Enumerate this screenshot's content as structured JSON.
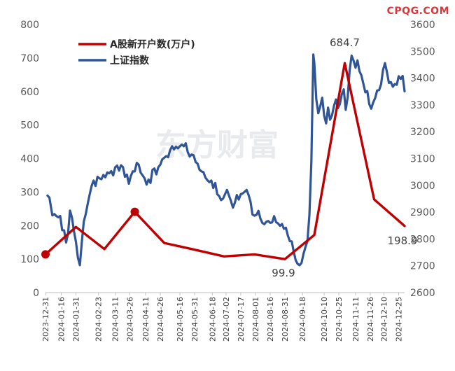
{
  "brand_text": "CPQG.COM",
  "watermark_text": "东方财富",
  "colors": {
    "accounts": "#c00000",
    "index": "#2f5597",
    "axis_text": "#595959",
    "brand": "#d9383a"
  },
  "chart_data": {
    "type": "line",
    "title": "",
    "xlabel": "",
    "ylabel": "",
    "ylim_left": [
      0,
      800
    ],
    "yticks_left": [
      0,
      100,
      200,
      300,
      400,
      500,
      600,
      700,
      800
    ],
    "ylim_right": [
      2600,
      3600
    ],
    "yticks_right": [
      2600,
      2700,
      2800,
      2900,
      3000,
      3100,
      3200,
      3300,
      3400,
      3500,
      3600
    ],
    "x_range": [
      "2023-12-31",
      "2024-12-31"
    ],
    "x_ticks": [
      "2023-12-31",
      "2024-01-16",
      "2024-01-31",
      "2024-02-23",
      "2024-03-11",
      "2024-03-26",
      "2024-04-11",
      "2024-04-26",
      "2024-05-16",
      "2024-05-31",
      "2024-06-18",
      "2024-07-02",
      "2024-07-17",
      "2024-08-01",
      "2024-08-16",
      "2024-08-31",
      "2024-09-18",
      "2024-10-10",
      "2024-10-25",
      "2024-11-11",
      "2024-11-26",
      "2024-12-10",
      "2024-12-25"
    ],
    "grid": false,
    "legend_position": "top-left",
    "series": [
      {
        "name": "A股新开户数(万户)",
        "axis": "left",
        "color": "#c00000",
        "marker_dates": [
          "2023-12-31",
          "2024-03-31"
        ],
        "points": [
          [
            "2023-12-31",
            114
          ],
          [
            "2024-01-31",
            196
          ],
          [
            "2024-02-29",
            130
          ],
          [
            "2024-03-31",
            241
          ],
          [
            "2024-04-30",
            148
          ],
          [
            "2024-05-31",
            128
          ],
          [
            "2024-06-30",
            108
          ],
          [
            "2024-07-31",
            114
          ],
          [
            "2024-08-31",
            99.9
          ],
          [
            "2024-09-30",
            172
          ],
          [
            "2024-10-31",
            684.7
          ],
          [
            "2024-11-30",
            278
          ],
          [
            "2024-12-31",
            198.9
          ]
        ]
      },
      {
        "name": "上证指数",
        "axis": "right",
        "color": "#2f5597",
        "points": [
          [
            "2024-01-02",
            2962
          ],
          [
            "2024-01-04",
            2954
          ],
          [
            "2024-01-07",
            2888
          ],
          [
            "2024-01-09",
            2893
          ],
          [
            "2024-01-11",
            2886
          ],
          [
            "2024-01-13",
            2881
          ],
          [
            "2024-01-15",
            2886
          ],
          [
            "2024-01-17",
            2833
          ],
          [
            "2024-01-19",
            2832
          ],
          [
            "2024-01-21",
            2787
          ],
          [
            "2024-01-23",
            2820
          ],
          [
            "2024-01-25",
            2906
          ],
          [
            "2024-01-27",
            2880
          ],
          [
            "2024-01-29",
            2830
          ],
          [
            "2024-01-31",
            2789
          ],
          [
            "2024-02-02",
            2730
          ],
          [
            "2024-02-04",
            2702
          ],
          [
            "2024-02-06",
            2789
          ],
          [
            "2024-02-08",
            2865
          ],
          [
            "2024-02-10",
            2893
          ],
          [
            "2024-02-12",
            2931
          ],
          [
            "2024-02-14",
            2966
          ],
          [
            "2024-02-16",
            2998
          ],
          [
            "2024-02-18",
            3018
          ],
          [
            "2024-02-20",
            2998
          ],
          [
            "2024-02-22",
            3032
          ],
          [
            "2024-02-24",
            3026
          ],
          [
            "2024-02-26",
            3023
          ],
          [
            "2024-02-28",
            3039
          ],
          [
            "2024-03-01",
            3030
          ],
          [
            "2024-03-03",
            3048
          ],
          [
            "2024-03-05",
            3045
          ],
          [
            "2024-03-07",
            3053
          ],
          [
            "2024-03-09",
            3037
          ],
          [
            "2024-03-11",
            3067
          ],
          [
            "2024-03-13",
            3074
          ],
          [
            "2024-03-15",
            3055
          ],
          [
            "2024-03-17",
            3075
          ],
          [
            "2024-03-19",
            3068
          ],
          [
            "2024-03-21",
            3032
          ],
          [
            "2024-03-23",
            3040
          ],
          [
            "2024-03-25",
            3006
          ],
          [
            "2024-03-27",
            3035
          ],
          [
            "2024-03-29",
            3052
          ],
          [
            "2024-03-31",
            3052
          ],
          [
            "2024-04-02",
            3084
          ],
          [
            "2024-04-04",
            3077
          ],
          [
            "2024-04-06",
            3047
          ],
          [
            "2024-04-08",
            3037
          ],
          [
            "2024-04-10",
            3026
          ],
          [
            "2024-04-12",
            3003
          ],
          [
            "2024-04-14",
            3022
          ],
          [
            "2024-04-16",
            3009
          ],
          [
            "2024-04-18",
            3058
          ],
          [
            "2024-04-20",
            3063
          ],
          [
            "2024-04-22",
            3041
          ],
          [
            "2024-04-24",
            3068
          ],
          [
            "2024-04-26",
            3077
          ],
          [
            "2024-04-28",
            3097
          ],
          [
            "2024-04-30",
            3103
          ],
          [
            "2024-05-02",
            3109
          ],
          [
            "2024-05-04",
            3105
          ],
          [
            "2024-05-06",
            3131
          ],
          [
            "2024-05-08",
            3146
          ],
          [
            "2024-05-10",
            3134
          ],
          [
            "2024-05-12",
            3144
          ],
          [
            "2024-05-14",
            3138
          ],
          [
            "2024-05-16",
            3146
          ],
          [
            "2024-05-18",
            3152
          ],
          [
            "2024-05-20",
            3146
          ],
          [
            "2024-05-22",
            3157
          ],
          [
            "2024-05-24",
            3124
          ],
          [
            "2024-05-26",
            3108
          ],
          [
            "2024-05-28",
            3115
          ],
          [
            "2024-05-30",
            3112
          ],
          [
            "2024-06-01",
            3087
          ],
          [
            "2024-06-03",
            3081
          ],
          [
            "2024-06-05",
            3058
          ],
          [
            "2024-06-07",
            3052
          ],
          [
            "2024-06-09",
            3049
          ],
          [
            "2024-06-11",
            3029
          ],
          [
            "2024-06-13",
            3019
          ],
          [
            "2024-06-15",
            3012
          ],
          [
            "2024-06-17",
            3018
          ],
          [
            "2024-06-19",
            2990
          ],
          [
            "2024-06-21",
            3009
          ],
          [
            "2024-06-23",
            2967
          ],
          [
            "2024-06-25",
            2960
          ],
          [
            "2024-06-27",
            2945
          ],
          [
            "2024-06-29",
            2951
          ],
          [
            "2024-07-01",
            2967
          ],
          [
            "2024-07-03",
            2983
          ],
          [
            "2024-07-05",
            2962
          ],
          [
            "2024-07-07",
            2942
          ],
          [
            "2024-07-09",
            2917
          ],
          [
            "2024-07-11",
            2935
          ],
          [
            "2024-07-13",
            2964
          ],
          [
            "2024-07-15",
            2947
          ],
          [
            "2024-07-17",
            2967
          ],
          [
            "2024-07-19",
            2970
          ],
          [
            "2024-07-21",
            2976
          ],
          [
            "2024-07-23",
            2983
          ],
          [
            "2024-07-25",
            2964
          ],
          [
            "2024-07-27",
            2939
          ],
          [
            "2024-07-29",
            2891
          ],
          [
            "2024-07-31",
            2887
          ],
          [
            "2024-08-02",
            2890
          ],
          [
            "2024-08-04",
            2905
          ],
          [
            "2024-08-06",
            2876
          ],
          [
            "2024-08-08",
            2860
          ],
          [
            "2024-08-10",
            2855
          ],
          [
            "2024-08-12",
            2864
          ],
          [
            "2024-08-14",
            2867
          ],
          [
            "2024-08-16",
            2860
          ],
          [
            "2024-08-18",
            2862
          ],
          [
            "2024-08-20",
            2885
          ],
          [
            "2024-08-22",
            2863
          ],
          [
            "2024-08-24",
            2858
          ],
          [
            "2024-08-26",
            2849
          ],
          [
            "2024-08-28",
            2856
          ],
          [
            "2024-08-30",
            2838
          ],
          [
            "2024-09-01",
            2842
          ],
          [
            "2024-09-03",
            2813
          ],
          [
            "2024-09-05",
            2792
          ],
          [
            "2024-09-07",
            2791
          ],
          [
            "2024-09-09",
            2753
          ],
          [
            "2024-09-11",
            2721
          ],
          [
            "2024-09-13",
            2707
          ],
          [
            "2024-09-15",
            2702
          ],
          [
            "2024-09-17",
            2711
          ],
          [
            "2024-09-19",
            2745
          ],
          [
            "2024-09-21",
            2770
          ],
          [
            "2024-09-23",
            2792
          ],
          [
            "2024-09-25",
            2889
          ],
          [
            "2024-09-27",
            3087
          ],
          [
            "2024-09-29",
            3488
          ],
          [
            "2024-09-30",
            3458
          ],
          [
            "2024-10-02",
            3320
          ],
          [
            "2024-10-04",
            3269
          ],
          [
            "2024-10-06",
            3295
          ],
          [
            "2024-10-08",
            3327
          ],
          [
            "2024-10-10",
            3260
          ],
          [
            "2024-10-12",
            3231
          ],
          [
            "2024-10-14",
            3290
          ],
          [
            "2024-10-16",
            3245
          ],
          [
            "2024-10-18",
            3261
          ],
          [
            "2024-10-20",
            3296
          ],
          [
            "2024-10-22",
            3320
          ],
          [
            "2024-10-24",
            3288
          ],
          [
            "2024-10-26",
            3303
          ],
          [
            "2024-10-28",
            3340
          ],
          [
            "2024-10-30",
            3358
          ],
          [
            "2024-11-01",
            3282
          ],
          [
            "2024-11-03",
            3329
          ],
          [
            "2024-11-05",
            3429
          ],
          [
            "2024-11-07",
            3484
          ],
          [
            "2024-11-09",
            3465
          ],
          [
            "2024-11-11",
            3439
          ],
          [
            "2024-11-13",
            3466
          ],
          [
            "2024-11-15",
            3426
          ],
          [
            "2024-11-17",
            3410
          ],
          [
            "2024-11-19",
            3379
          ],
          [
            "2024-11-21",
            3347
          ],
          [
            "2024-11-23",
            3352
          ],
          [
            "2024-11-25",
            3303
          ],
          [
            "2024-11-27",
            3286
          ],
          [
            "2024-11-29",
            3309
          ],
          [
            "2024-12-01",
            3326
          ],
          [
            "2024-12-03",
            3354
          ],
          [
            "2024-12-05",
            3355
          ],
          [
            "2024-12-07",
            3377
          ],
          [
            "2024-12-09",
            3431
          ],
          [
            "2024-12-11",
            3456
          ],
          [
            "2024-12-13",
            3422
          ],
          [
            "2024-12-15",
            3382
          ],
          [
            "2024-12-17",
            3385
          ],
          [
            "2024-12-19",
            3368
          ],
          [
            "2024-12-21",
            3378
          ],
          [
            "2024-12-23",
            3375
          ],
          [
            "2024-12-25",
            3407
          ],
          [
            "2024-12-27",
            3397
          ],
          [
            "2024-12-29",
            3408
          ],
          [
            "2024-12-31",
            3351
          ]
        ]
      }
    ],
    "annotations": [
      {
        "text": "684.7",
        "date": "2024-10-31",
        "value": 684.7
      },
      {
        "text": "99.9",
        "date": "2024-08-31",
        "value": 99.9
      },
      {
        "text": "198.9",
        "date": "2024-12-31",
        "value": 198.9
      }
    ]
  }
}
